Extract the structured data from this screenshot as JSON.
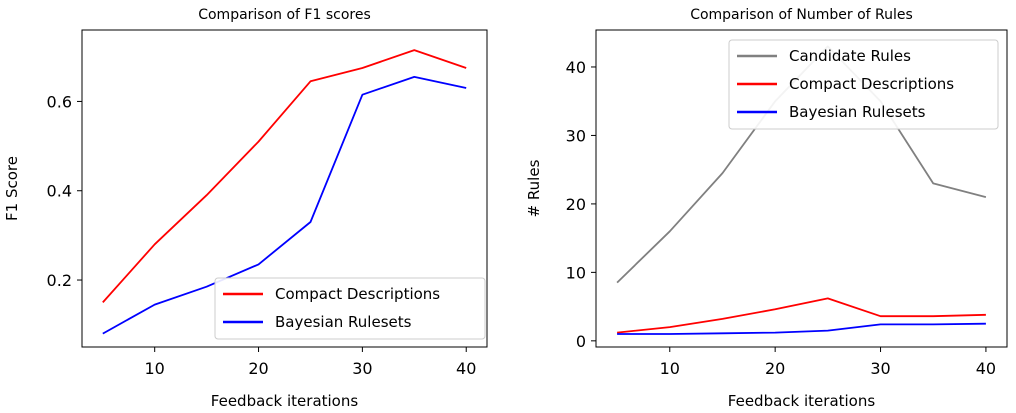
{
  "chart_data": [
    {
      "type": "line",
      "title": "Comparison of F1 scores",
      "xlabel": "Feedback iterations",
      "ylabel": "F1 Score",
      "xlim": [
        3,
        42
      ],
      "ylim": [
        0.05,
        0.76
      ],
      "xticks": [
        10,
        20,
        30,
        40
      ],
      "yticks": [
        0.2,
        0.4,
        0.6
      ],
      "ytick_labels": [
        "0.2",
        "0.4",
        "0.6"
      ],
      "legend_position": "lower right",
      "x": [
        5,
        10,
        15,
        20,
        25,
        30,
        35,
        40
      ],
      "series": [
        {
          "name": "Compact Descriptions",
          "color": "#ff0000",
          "values": [
            0.15,
            0.28,
            0.39,
            0.51,
            0.645,
            0.675,
            0.715,
            0.675
          ]
        },
        {
          "name": "Bayesian Rulesets",
          "color": "#0000ff",
          "values": [
            0.08,
            0.145,
            0.185,
            0.235,
            0.33,
            0.615,
            0.655,
            0.63
          ]
        }
      ]
    },
    {
      "type": "line",
      "title": "Comparison of Number of Rules",
      "xlabel": "Feedback iterations",
      "ylabel": "# Rules",
      "xlim": [
        3,
        42
      ],
      "ylim": [
        -0.9,
        45.4
      ],
      "xticks": [
        10,
        20,
        30,
        40
      ],
      "yticks": [
        0,
        10,
        20,
        30,
        40
      ],
      "ytick_labels": [
        "0",
        "10",
        "20",
        "30",
        "40"
      ],
      "legend_position": "upper right",
      "x": [
        5,
        10,
        15,
        20,
        25,
        30,
        35,
        40
      ],
      "series": [
        {
          "name": "Candidate Rules",
          "color": "#808080",
          "values": [
            8.5,
            16,
            24.5,
            35,
            43,
            35,
            23,
            21
          ]
        },
        {
          "name": "Compact Descriptions",
          "color": "#ff0000",
          "values": [
            1.2,
            2,
            3.2,
            4.6,
            6.2,
            3.6,
            3.6,
            3.8
          ]
        },
        {
          "name": "Bayesian Rulesets",
          "color": "#0000ff",
          "values": [
            1,
            1,
            1.1,
            1.2,
            1.5,
            2.4,
            2.4,
            2.5
          ]
        }
      ]
    }
  ]
}
